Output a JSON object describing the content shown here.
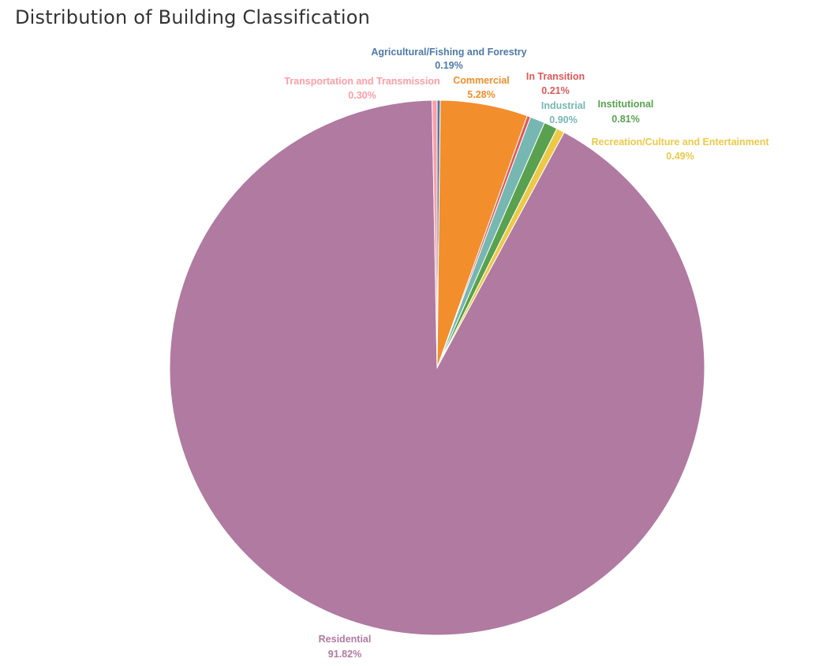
{
  "title": "Distribution of Building Classification",
  "chart_data": {
    "type": "pie",
    "title": "Distribution of Building Classification",
    "slices": [
      {
        "name": "Agricultural/Fishing and Forestry",
        "value": 0.19,
        "label": "0.19%",
        "color": "#4e79a7"
      },
      {
        "name": "Commercial",
        "value": 5.28,
        "label": "5.28%",
        "color": "#f28e2b"
      },
      {
        "name": "In Transition",
        "value": 0.21,
        "label": "0.21%",
        "color": "#e15759"
      },
      {
        "name": "Industrial",
        "value": 0.9,
        "label": "0.90%",
        "color": "#76b7b2"
      },
      {
        "name": "Institutional",
        "value": 0.81,
        "label": "0.81%",
        "color": "#59a14f"
      },
      {
        "name": "Recreation/Culture and Entertainment",
        "value": 0.49,
        "label": "0.49%",
        "color": "#edc948"
      },
      {
        "name": "Residential",
        "value": 91.82,
        "label": "91.82%",
        "color": "#b07aa1"
      },
      {
        "name": "Transportation and Transmission",
        "value": 0.3,
        "label": "0.30%",
        "color": "#ff9da7"
      }
    ],
    "label_colors": {
      "Agricultural/Fishing and Forestry": "#4e79a7",
      "Commercial": "#f28e2b",
      "In Transition": "#e15759",
      "Industrial": "#76b7b2",
      "Institutional": "#59a14f",
      "Recreation/Culture and Entertainment": "#edc948",
      "Residential": "#b07aa1",
      "Transportation and Transmission": "#ff9da7"
    }
  }
}
